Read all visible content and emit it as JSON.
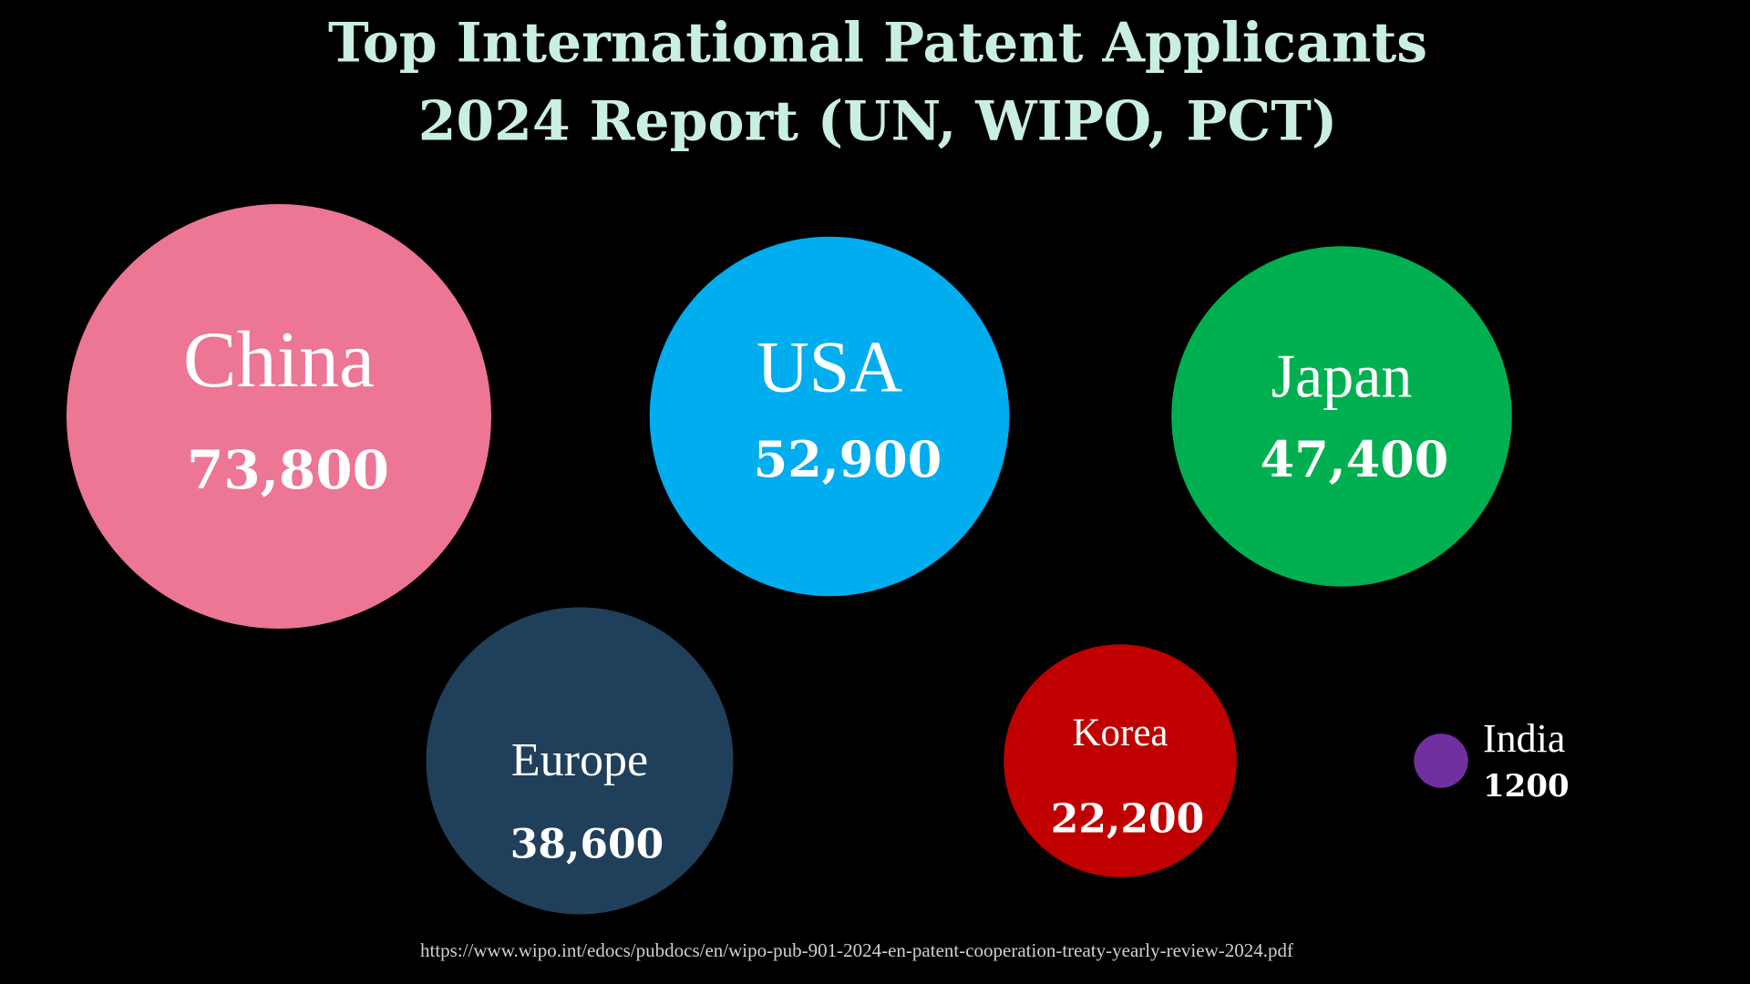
{
  "chart_data": {
    "type": "bubble",
    "title": "Top International Patent Applicants",
    "subtitle": "2024 Report (UN, WIPO, PCT)",
    "categories": [
      "China",
      "USA",
      "Japan",
      "Europe",
      "Korea",
      "India"
    ],
    "values": [
      73800,
      52900,
      47400,
      38600,
      22200,
      1200
    ],
    "value_labels": [
      "73,800",
      "52,900",
      "47,400",
      "38,600",
      "22,200",
      "1200"
    ],
    "colors": [
      "#ec7694",
      "#00adef",
      "#00b050",
      "#203f5a",
      "#c00000",
      "#7030a0"
    ],
    "source": "https://www.wipo.int/edocs/pubdocs/en/wipo-pub-901-2024-en-patent-cooperation-treaty-yearly-review-2024.pdf"
  }
}
